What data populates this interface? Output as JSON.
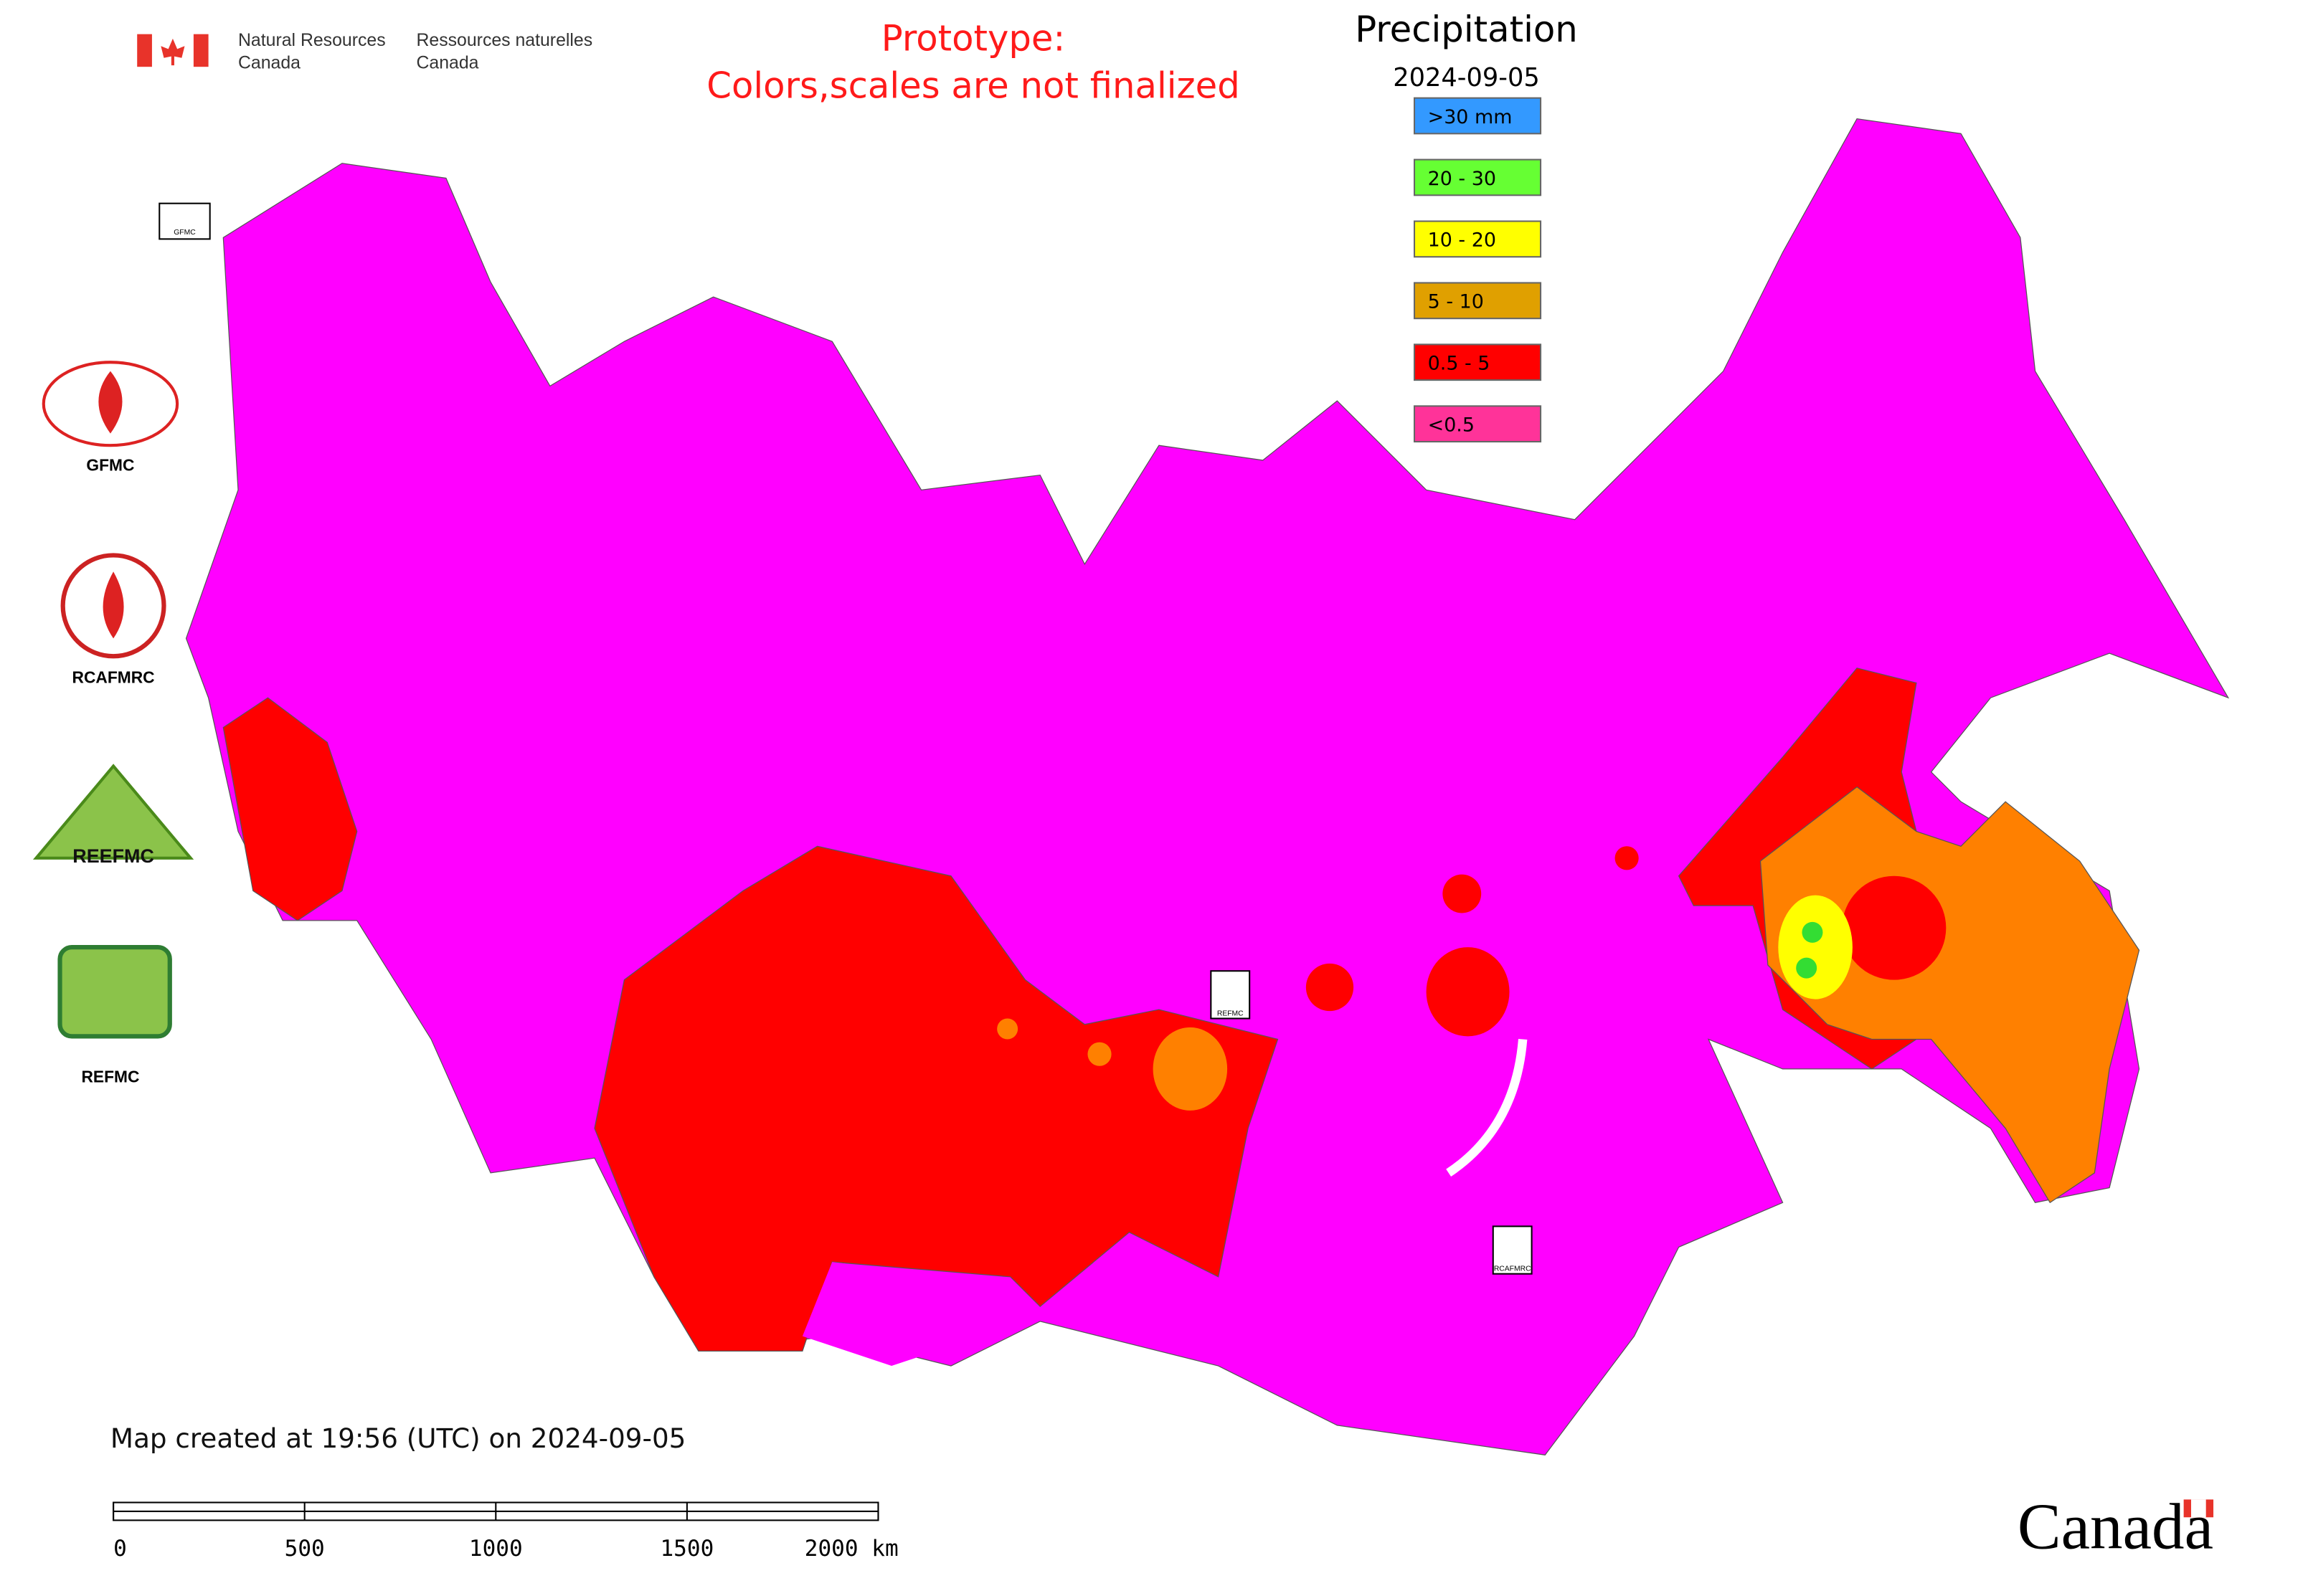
{
  "header": {
    "org_en": [
      "Natural Resources",
      "Canada"
    ],
    "org_fr": [
      "Ressources naturelles",
      "Canada"
    ],
    "notice": [
      "Prototype:",
      "Colors,scales are not finalized"
    ]
  },
  "legend": {
    "title": "Precipitation",
    "date": "2024-09-05",
    "items": [
      {
        "label": ">30 mm",
        "color": "#3399ff"
      },
      {
        "label": "20 - 30",
        "color": "#66ff33"
      },
      {
        "label": "10 - 20",
        "color": "#ffff00"
      },
      {
        "label": "5 - 10",
        "color": "#e0a000"
      },
      {
        "label": "0.5 - 5",
        "color": "#ff0000"
      },
      {
        "label": "<0.5",
        "color": "#ff3399"
      }
    ]
  },
  "logos": {
    "side": [
      "GFMC",
      "RCAFMRC",
      "REEFMC",
      "REFMC"
    ],
    "map_gfmc": "GFMC",
    "map_refmc": "REFMC",
    "map_rcafmrc": "RCAFMRC"
  },
  "footer": {
    "created": "Map created at 19:56 (UTC) on 2024-09-05",
    "scale_labels": [
      "0",
      "500",
      "1000",
      "1500",
      "2000 km"
    ],
    "wordmark": "Canada"
  }
}
